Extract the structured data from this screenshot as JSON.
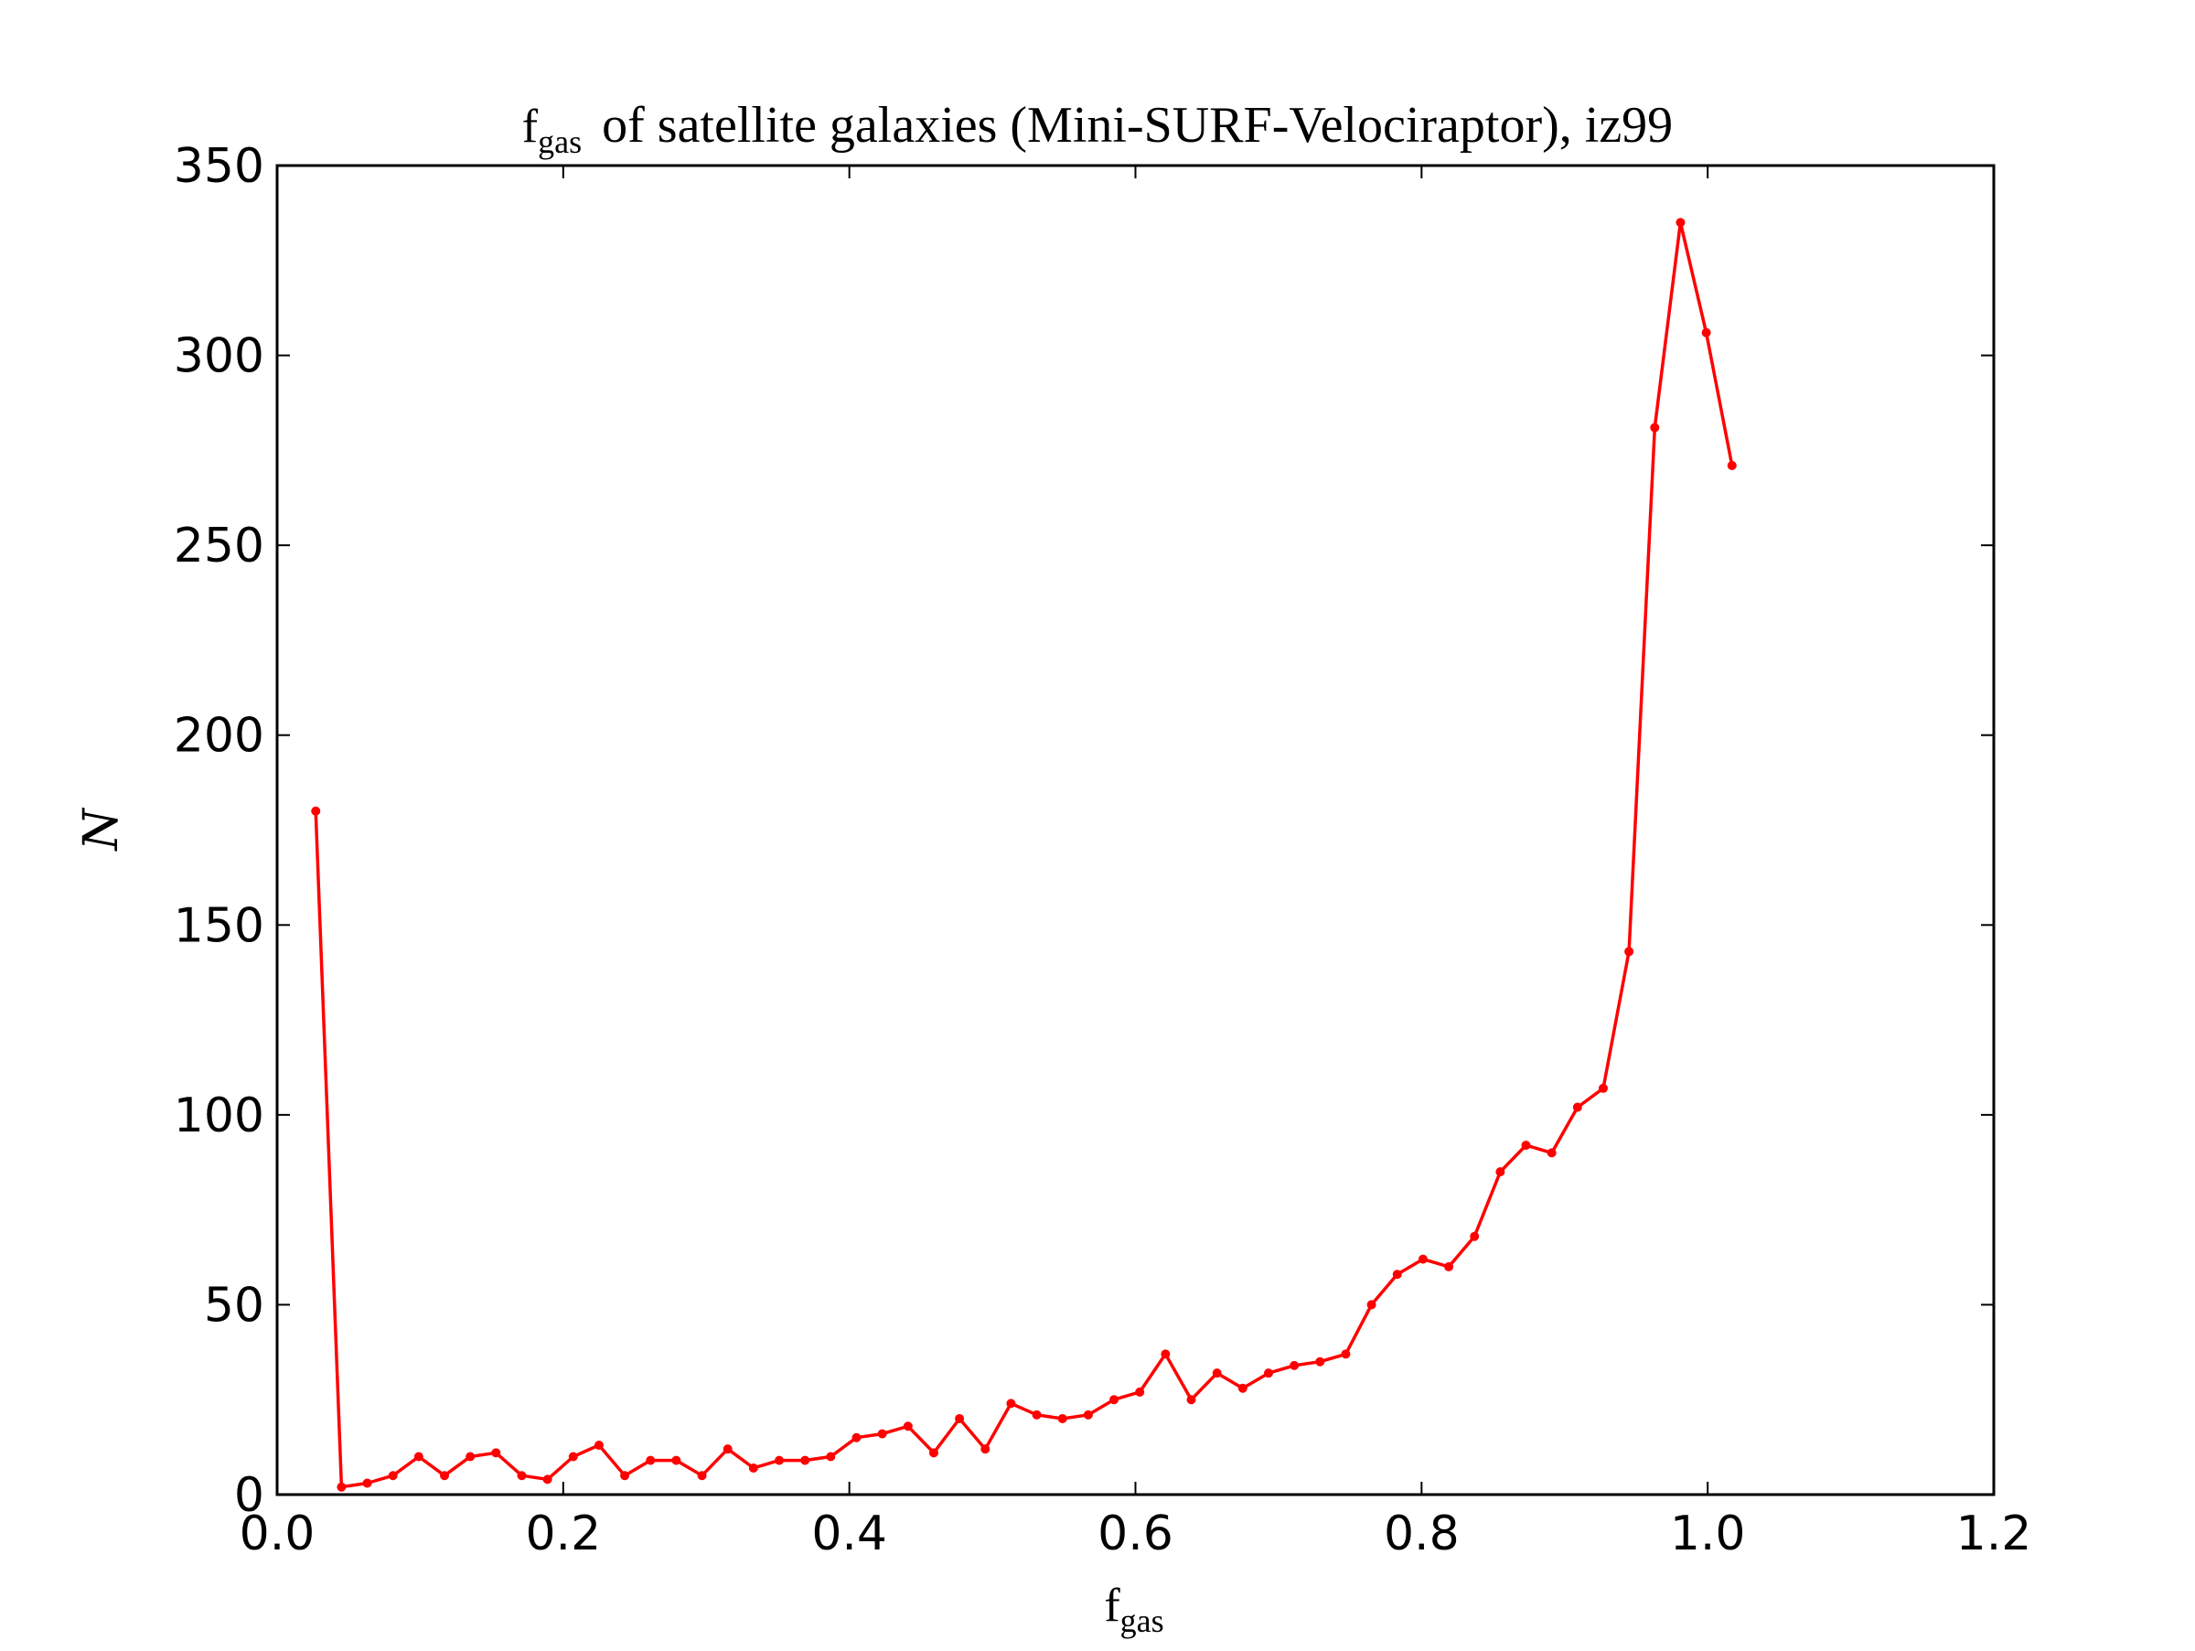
{
  "chart_data": {
    "type": "line",
    "title": {
      "math_symbol": "f",
      "math_subscript": "gas",
      "text": "of satellite galaxies (Mini-SURF-Velociraptor), iz99"
    },
    "xlabel": {
      "symbol": "f",
      "subscript": "gas"
    },
    "ylabel": "N",
    "xlim": [
      0.0,
      1.2
    ],
    "ylim": [
      0,
      350
    ],
    "xticks": [
      "0.0",
      "0.2",
      "0.4",
      "0.6",
      "0.8",
      "1.0",
      "1.2"
    ],
    "yticks": [
      "0",
      "50",
      "100",
      "150",
      "200",
      "250",
      "300",
      "350"
    ],
    "grid": false,
    "color": "#ff0000",
    "series": [
      {
        "x": [
          0.027,
          0.045,
          0.063,
          0.081,
          0.099,
          0.117,
          0.135,
          0.153,
          0.171,
          0.189,
          0.207,
          0.225,
          0.243,
          0.261,
          0.279,
          0.297,
          0.315,
          0.333,
          0.351,
          0.369,
          0.387,
          0.405,
          0.423,
          0.441,
          0.459,
          0.477,
          0.495,
          0.513,
          0.531,
          0.549,
          0.567,
          0.585,
          0.603,
          0.621,
          0.639,
          0.657,
          0.675,
          0.693,
          0.711,
          0.729,
          0.747,
          0.765,
          0.783,
          0.801,
          0.819,
          0.837,
          0.855,
          0.873,
          0.891,
          0.909,
          0.927,
          0.945,
          0.963,
          0.981,
          0.999,
          1.017
        ],
        "y": [
          180,
          2,
          3,
          5,
          10,
          5,
          10,
          11,
          5,
          4,
          10,
          13,
          5,
          9,
          9,
          5,
          12,
          7,
          9,
          9,
          10,
          15,
          16,
          18,
          11,
          20,
          12,
          24,
          21,
          20,
          21,
          25,
          27,
          37,
          25,
          32,
          28,
          32,
          34,
          35,
          37,
          50,
          58,
          62,
          60,
          68,
          85,
          92,
          90,
          102,
          107,
          143,
          281,
          335,
          306,
          271
        ]
      }
    ]
  }
}
